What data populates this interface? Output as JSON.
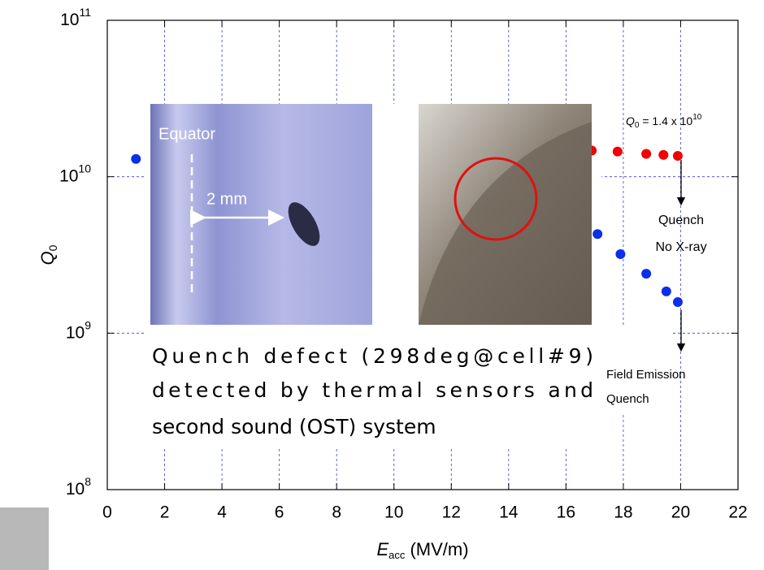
{
  "chart_data": {
    "type": "scatter",
    "xlabel": {
      "text": "E",
      "sub": "acc",
      "rest": " (MV/m)"
    },
    "ylabel": {
      "text": "Q",
      "sub": "0"
    },
    "xlim": [
      0,
      22
    ],
    "xticks": [
      0,
      2,
      4,
      6,
      8,
      10,
      12,
      14,
      16,
      18,
      20,
      22
    ],
    "ylim": [
      100000000,
      100000000000
    ],
    "yticks": [
      {
        "value": 100000000,
        "label": "10",
        "exponent": "8"
      },
      {
        "value": 1000000000,
        "label": "10",
        "exponent": "9"
      },
      {
        "value": 10000000000,
        "label": "10",
        "exponent": "10"
      },
      {
        "value": 100000000000,
        "label": "10",
        "exponent": "11"
      }
    ],
    "log_y": true,
    "grid": true,
    "series": [
      {
        "color": "#0b2fe8",
        "x": [
          1,
          17.1,
          17.9,
          18.8,
          19.5,
          19.9
        ],
        "values": [
          13000000000,
          4300000000,
          3200000000,
          2400000000,
          1850000000,
          1580000000
        ]
      },
      {
        "color": "#f00000",
        "x": [
          16.9,
          17.8,
          18.8,
          19.4,
          19.9
        ],
        "values": [
          14700000000,
          14500000000,
          14000000000,
          13800000000,
          13600000000
        ]
      }
    ],
    "annotations": {
      "q0": {
        "text": "Q",
        "sub": "0",
        "rest": " = 1.4 x 10",
        "sup": "10"
      },
      "red_end": [
        "Quench",
        "No X-ray"
      ],
      "blue_end": [
        "Field Emission",
        "Quench"
      ],
      "photo_labels": [
        "Equator",
        "2 mm"
      ],
      "caption": [
        "Quench defect (298deg@cell#9)",
        "detected by thermal sensors and",
        "second sound (OST) system"
      ]
    }
  }
}
